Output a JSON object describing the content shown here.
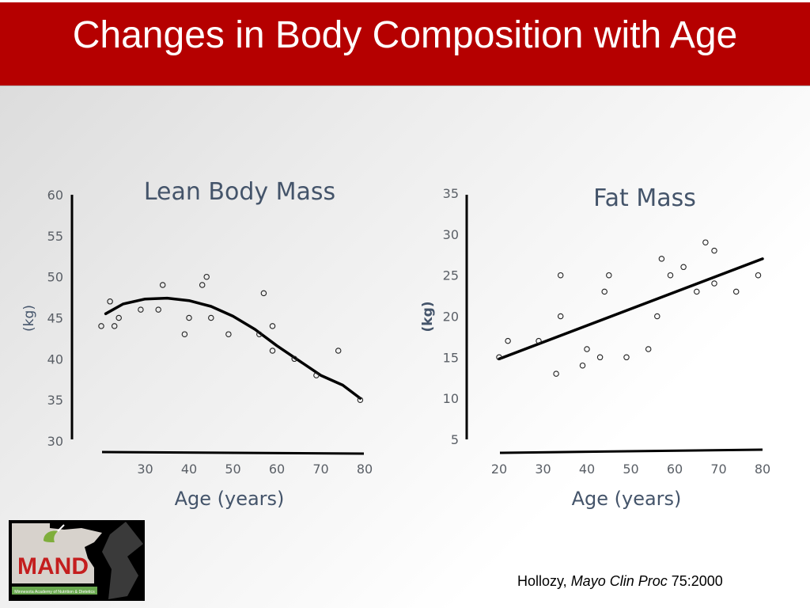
{
  "slide": {
    "title": "Changes in Body Composition with Age",
    "citation": {
      "author": "Hollozy, ",
      "journal": "Mayo Clin Proc",
      "ref": " 75:2000"
    },
    "logo": {
      "brand": "MAND",
      "subtitle": "Minnesota Academy of Nutrition & Dietetics"
    }
  },
  "chart_data": [
    {
      "type": "scatter",
      "title": "Lean Body Mass",
      "xlabel": "Age (years)",
      "ylabel": "(kg)",
      "xlim": [
        20,
        80
      ],
      "ylim": [
        30,
        60
      ],
      "xticks": [
        "30",
        "40",
        "50",
        "60",
        "70",
        "80"
      ],
      "yticks": [
        "30",
        "35",
        "40",
        "45",
        "50",
        "55",
        "60"
      ],
      "points": [
        [
          20,
          44
        ],
        [
          22,
          47
        ],
        [
          23,
          44
        ],
        [
          24,
          45
        ],
        [
          29,
          46
        ],
        [
          33,
          46
        ],
        [
          34,
          49
        ],
        [
          39,
          43
        ],
        [
          40,
          45
        ],
        [
          43,
          49
        ],
        [
          44,
          50
        ],
        [
          45,
          45
        ],
        [
          49,
          43
        ],
        [
          56,
          43
        ],
        [
          57,
          48
        ],
        [
          59,
          44
        ],
        [
          59,
          41
        ],
        [
          64,
          40
        ],
        [
          69,
          38
        ],
        [
          74,
          41
        ],
        [
          79,
          35
        ]
      ],
      "trend": [
        [
          21,
          45.5
        ],
        [
          25,
          46.7
        ],
        [
          30,
          47.3
        ],
        [
          35,
          47.4
        ],
        [
          40,
          47.1
        ],
        [
          45,
          46.4
        ],
        [
          50,
          45.2
        ],
        [
          55,
          43.6
        ],
        [
          60,
          41.6
        ],
        [
          65,
          39.8
        ],
        [
          70,
          38
        ],
        [
          75,
          36.8
        ],
        [
          79,
          35.2
        ]
      ]
    },
    {
      "type": "scatter",
      "title": "Fat Mass",
      "xlabel": "Age (years)",
      "ylabel": "(kg)",
      "xlim": [
        20,
        80
      ],
      "ylim": [
        5,
        35
      ],
      "xticks": [
        "20",
        "30",
        "40",
        "50",
        "60",
        "70",
        "80"
      ],
      "yticks": [
        "5",
        "10",
        "15",
        "20",
        "25",
        "30",
        "35"
      ],
      "points": [
        [
          20,
          15
        ],
        [
          22,
          17
        ],
        [
          29,
          17
        ],
        [
          33,
          13
        ],
        [
          34,
          25
        ],
        [
          34,
          20
        ],
        [
          39,
          14
        ],
        [
          40,
          16
        ],
        [
          43,
          15
        ],
        [
          44,
          23
        ],
        [
          45,
          25
        ],
        [
          49,
          15
        ],
        [
          54,
          16
        ],
        [
          56,
          20
        ],
        [
          57,
          27
        ],
        [
          59,
          25
        ],
        [
          62,
          26
        ],
        [
          65,
          23
        ],
        [
          67,
          29
        ],
        [
          69,
          28
        ],
        [
          69,
          24
        ],
        [
          74,
          23
        ],
        [
          79,
          25
        ]
      ],
      "trend": [
        [
          20,
          14.8
        ],
        [
          80,
          27
        ]
      ]
    }
  ]
}
